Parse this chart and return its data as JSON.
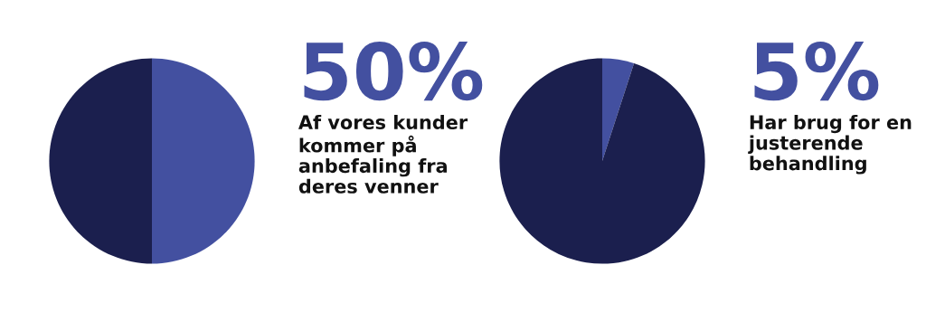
{
  "chart_data": [
    {
      "type": "pie",
      "categories": [
        null,
        null
      ],
      "values": [
        50,
        50
      ],
      "colors": [
        "#4350a0",
        "#1b1f4e"
      ],
      "annotations": [
        "50%",
        "Af vores kunder\nkommer på\nanbefaling fra\nderes venner"
      ]
    },
    {
      "type": "pie",
      "categories": [
        null,
        null
      ],
      "values": [
        5,
        95
      ],
      "colors": [
        "#4350a0",
        "#1b1f4e"
      ],
      "annotations": [
        "5%",
        "Har brug for en\njusterende\nbehandling"
      ]
    }
  ]
}
